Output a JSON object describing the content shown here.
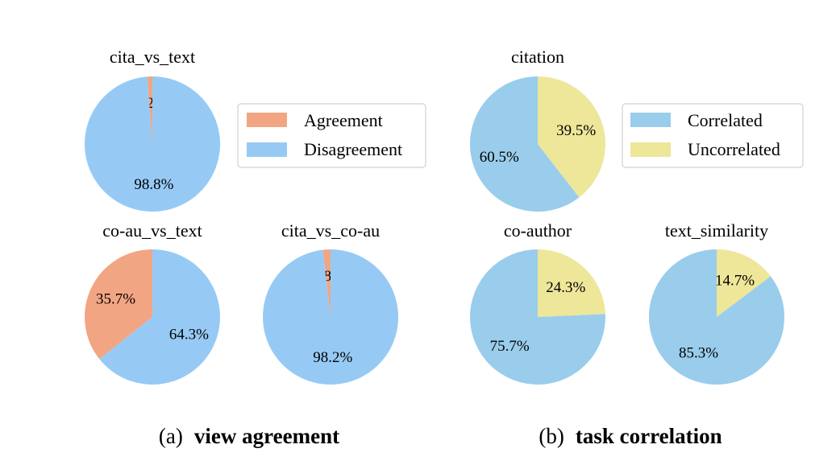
{
  "figure": {
    "captions": [
      {
        "prefix": "(a)",
        "label": "view agreement"
      },
      {
        "prefix": "(b)",
        "label": "task correlation"
      }
    ]
  },
  "chart_data": [
    {
      "type": "pie",
      "group": "view agreement",
      "title": "cita_vs_text",
      "labels": [
        "Agreement",
        "Disagreement"
      ],
      "values": [
        1.2,
        98.8
      ],
      "value_labels": [
        "1.2%",
        "98.8%"
      ],
      "colors": [
        "#F2A582",
        "#96CAF5"
      ],
      "start": "top",
      "direction": "counterclockwise"
    },
    {
      "type": "pie",
      "group": "view agreement",
      "title": "co-au_vs_text",
      "labels": [
        "Agreement",
        "Disagreement"
      ],
      "values": [
        35.7,
        64.3
      ],
      "value_labels": [
        "35.7%",
        "64.3%"
      ],
      "colors": [
        "#F2A582",
        "#96CAF5"
      ],
      "start": "top",
      "direction": "counterclockwise"
    },
    {
      "type": "pie",
      "group": "view agreement",
      "title": "cita_vs_co-au",
      "labels": [
        "Agreement",
        "Disagreement"
      ],
      "values": [
        1.8,
        98.2
      ],
      "value_labels": [
        "1.8%",
        "98.2%"
      ],
      "colors": [
        "#F2A582",
        "#96CAF5"
      ],
      "start": "top",
      "direction": "counterclockwise"
    },
    {
      "type": "pie",
      "group": "task correlation",
      "title": "citation",
      "labels": [
        "Correlated",
        "Uncorrelated"
      ],
      "values": [
        60.5,
        39.5
      ],
      "value_labels": [
        "60.5%",
        "39.5%"
      ],
      "colors": [
        "#99CDEB",
        "#EEE699"
      ],
      "start": "top",
      "direction": "counterclockwise"
    },
    {
      "type": "pie",
      "group": "task correlation",
      "title": "co-author",
      "labels": [
        "Correlated",
        "Uncorrelated"
      ],
      "values": [
        75.7,
        24.3
      ],
      "value_labels": [
        "75.7%",
        "24.3%"
      ],
      "colors": [
        "#99CDEB",
        "#EEE699"
      ],
      "start": "top",
      "direction": "counterclockwise"
    },
    {
      "type": "pie",
      "group": "task correlation",
      "title": "text_similarity",
      "labels": [
        "Correlated",
        "Uncorrelated"
      ],
      "values": [
        85.3,
        14.7
      ],
      "value_labels": [
        "85.3%",
        "14.7%"
      ],
      "colors": [
        "#99CDEB",
        "#EEE699"
      ],
      "start": "top",
      "direction": "counterclockwise"
    }
  ],
  "legends": [
    {
      "group": "view agreement",
      "placement": "right",
      "entries": [
        {
          "label": "Agreement",
          "color": "#F2A582"
        },
        {
          "label": "Disagreement",
          "color": "#96CAF5"
        }
      ]
    },
    {
      "group": "task correlation",
      "placement": "right",
      "entries": [
        {
          "label": "Correlated",
          "color": "#99CDEB"
        },
        {
          "label": "Uncorrelated",
          "color": "#EEE699"
        }
      ]
    }
  ]
}
